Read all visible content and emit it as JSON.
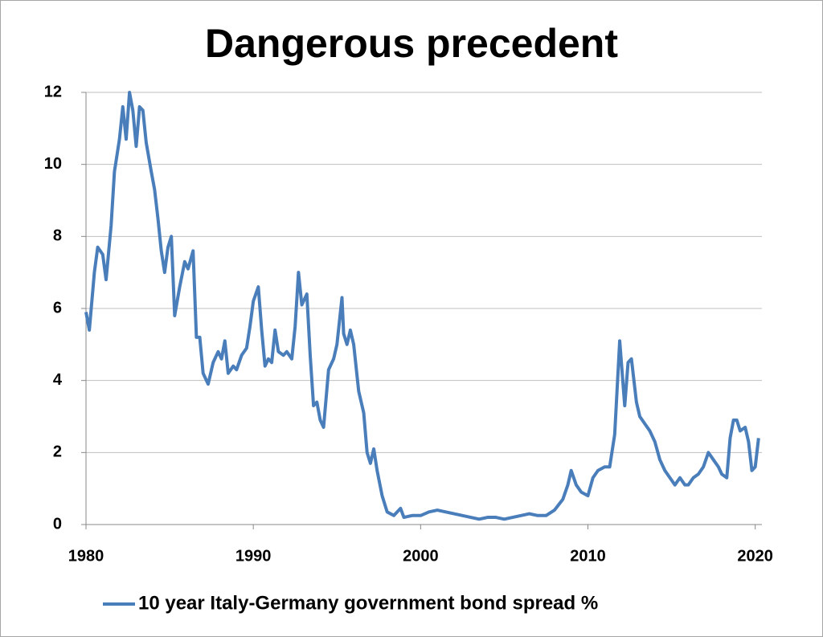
{
  "chart_data": {
    "type": "line",
    "title": "Dangerous precedent",
    "x": [
      1980.0,
      1980.2,
      1980.5,
      1980.7,
      1981.0,
      1981.2,
      1981.5,
      1981.7,
      1982.0,
      1982.2,
      1982.4,
      1982.6,
      1982.8,
      1983.0,
      1983.2,
      1983.4,
      1983.6,
      1983.9,
      1984.1,
      1984.3,
      1984.5,
      1984.7,
      1984.9,
      1985.1,
      1985.3,
      1985.6,
      1985.9,
      1986.1,
      1986.4,
      1986.6,
      1986.8,
      1987.0,
      1987.3,
      1987.6,
      1987.9,
      1988.1,
      1988.3,
      1988.5,
      1988.8,
      1989.0,
      1989.3,
      1989.6,
      1989.8,
      1990.0,
      1990.3,
      1990.5,
      1990.7,
      1990.9,
      1991.1,
      1991.3,
      1991.5,
      1991.8,
      1992.0,
      1992.3,
      1992.5,
      1992.7,
      1992.9,
      1993.2,
      1993.4,
      1993.6,
      1993.8,
      1994.0,
      1994.2,
      1994.5,
      1994.8,
      1995.0,
      1995.3,
      1995.4,
      1995.6,
      1995.8,
      1996.0,
      1996.3,
      1996.6,
      1996.8,
      1997.0,
      1997.2,
      1997.4,
      1997.7,
      1998.0,
      1998.4,
      1998.8,
      1999.0,
      1999.5,
      2000.0,
      2000.5,
      2001.0,
      2001.5,
      2002.0,
      2002.5,
      2003.0,
      2003.5,
      2004.0,
      2004.5,
      2005.0,
      2005.5,
      2006.0,
      2006.5,
      2007.0,
      2007.5,
      2008.0,
      2008.5,
      2008.8,
      2009.0,
      2009.3,
      2009.6,
      2010.0,
      2010.3,
      2010.6,
      2011.0,
      2011.3,
      2011.6,
      2011.9,
      2012.0,
      2012.2,
      2012.4,
      2012.6,
      2012.9,
      2013.1,
      2013.4,
      2013.7,
      2014.0,
      2014.3,
      2014.6,
      2014.9,
      2015.2,
      2015.5,
      2015.8,
      2016.0,
      2016.3,
      2016.6,
      2016.9,
      2017.2,
      2017.5,
      2017.8,
      2018.0,
      2018.3,
      2018.5,
      2018.7,
      2018.9,
      2019.1,
      2019.4,
      2019.6,
      2019.8,
      2020.0,
      2020.2
    ],
    "series": [
      {
        "name": "10 year Italy-Germany government bond spread %",
        "color": "#4a7ebb",
        "values": [
          5.9,
          5.4,
          7.0,
          7.7,
          7.5,
          6.8,
          8.3,
          9.8,
          10.7,
          11.6,
          10.7,
          12.0,
          11.5,
          10.5,
          11.6,
          11.5,
          10.6,
          9.8,
          9.3,
          8.5,
          7.6,
          7.0,
          7.7,
          8.0,
          5.8,
          6.6,
          7.3,
          7.1,
          7.6,
          5.2,
          5.2,
          4.2,
          3.9,
          4.5,
          4.8,
          4.6,
          5.1,
          4.2,
          4.4,
          4.3,
          4.7,
          4.9,
          5.5,
          6.2,
          6.6,
          5.4,
          4.4,
          4.6,
          4.5,
          5.4,
          4.8,
          4.7,
          4.8,
          4.6,
          5.5,
          7.0,
          6.1,
          6.4,
          4.7,
          3.3,
          3.4,
          2.9,
          2.7,
          4.3,
          4.6,
          5.0,
          6.3,
          5.3,
          5.0,
          5.4,
          5.0,
          3.7,
          3.1,
          2.0,
          1.7,
          2.1,
          1.5,
          0.8,
          0.35,
          0.25,
          0.45,
          0.2,
          0.25,
          0.25,
          0.35,
          0.4,
          0.35,
          0.3,
          0.25,
          0.2,
          0.15,
          0.2,
          0.2,
          0.15,
          0.2,
          0.25,
          0.3,
          0.25,
          0.25,
          0.4,
          0.7,
          1.1,
          1.5,
          1.1,
          0.9,
          0.8,
          1.3,
          1.5,
          1.6,
          1.6,
          2.5,
          5.1,
          4.5,
          3.3,
          4.5,
          4.6,
          3.4,
          3.0,
          2.8,
          2.6,
          2.3,
          1.8,
          1.5,
          1.3,
          1.1,
          1.3,
          1.1,
          1.1,
          1.3,
          1.4,
          1.6,
          2.0,
          1.8,
          1.6,
          1.4,
          1.3,
          2.4,
          2.9,
          2.9,
          2.6,
          2.7,
          2.3,
          1.5,
          1.6,
          2.4
        ]
      }
    ],
    "xlim": [
      1980,
      2020.4
    ],
    "xticks": [
      1980,
      1990,
      2000,
      2010,
      2020
    ],
    "ylim": [
      0,
      12
    ],
    "yticks": [
      0,
      2,
      4,
      6,
      8,
      10,
      12
    ],
    "grid": true,
    "legend": "bottom"
  }
}
